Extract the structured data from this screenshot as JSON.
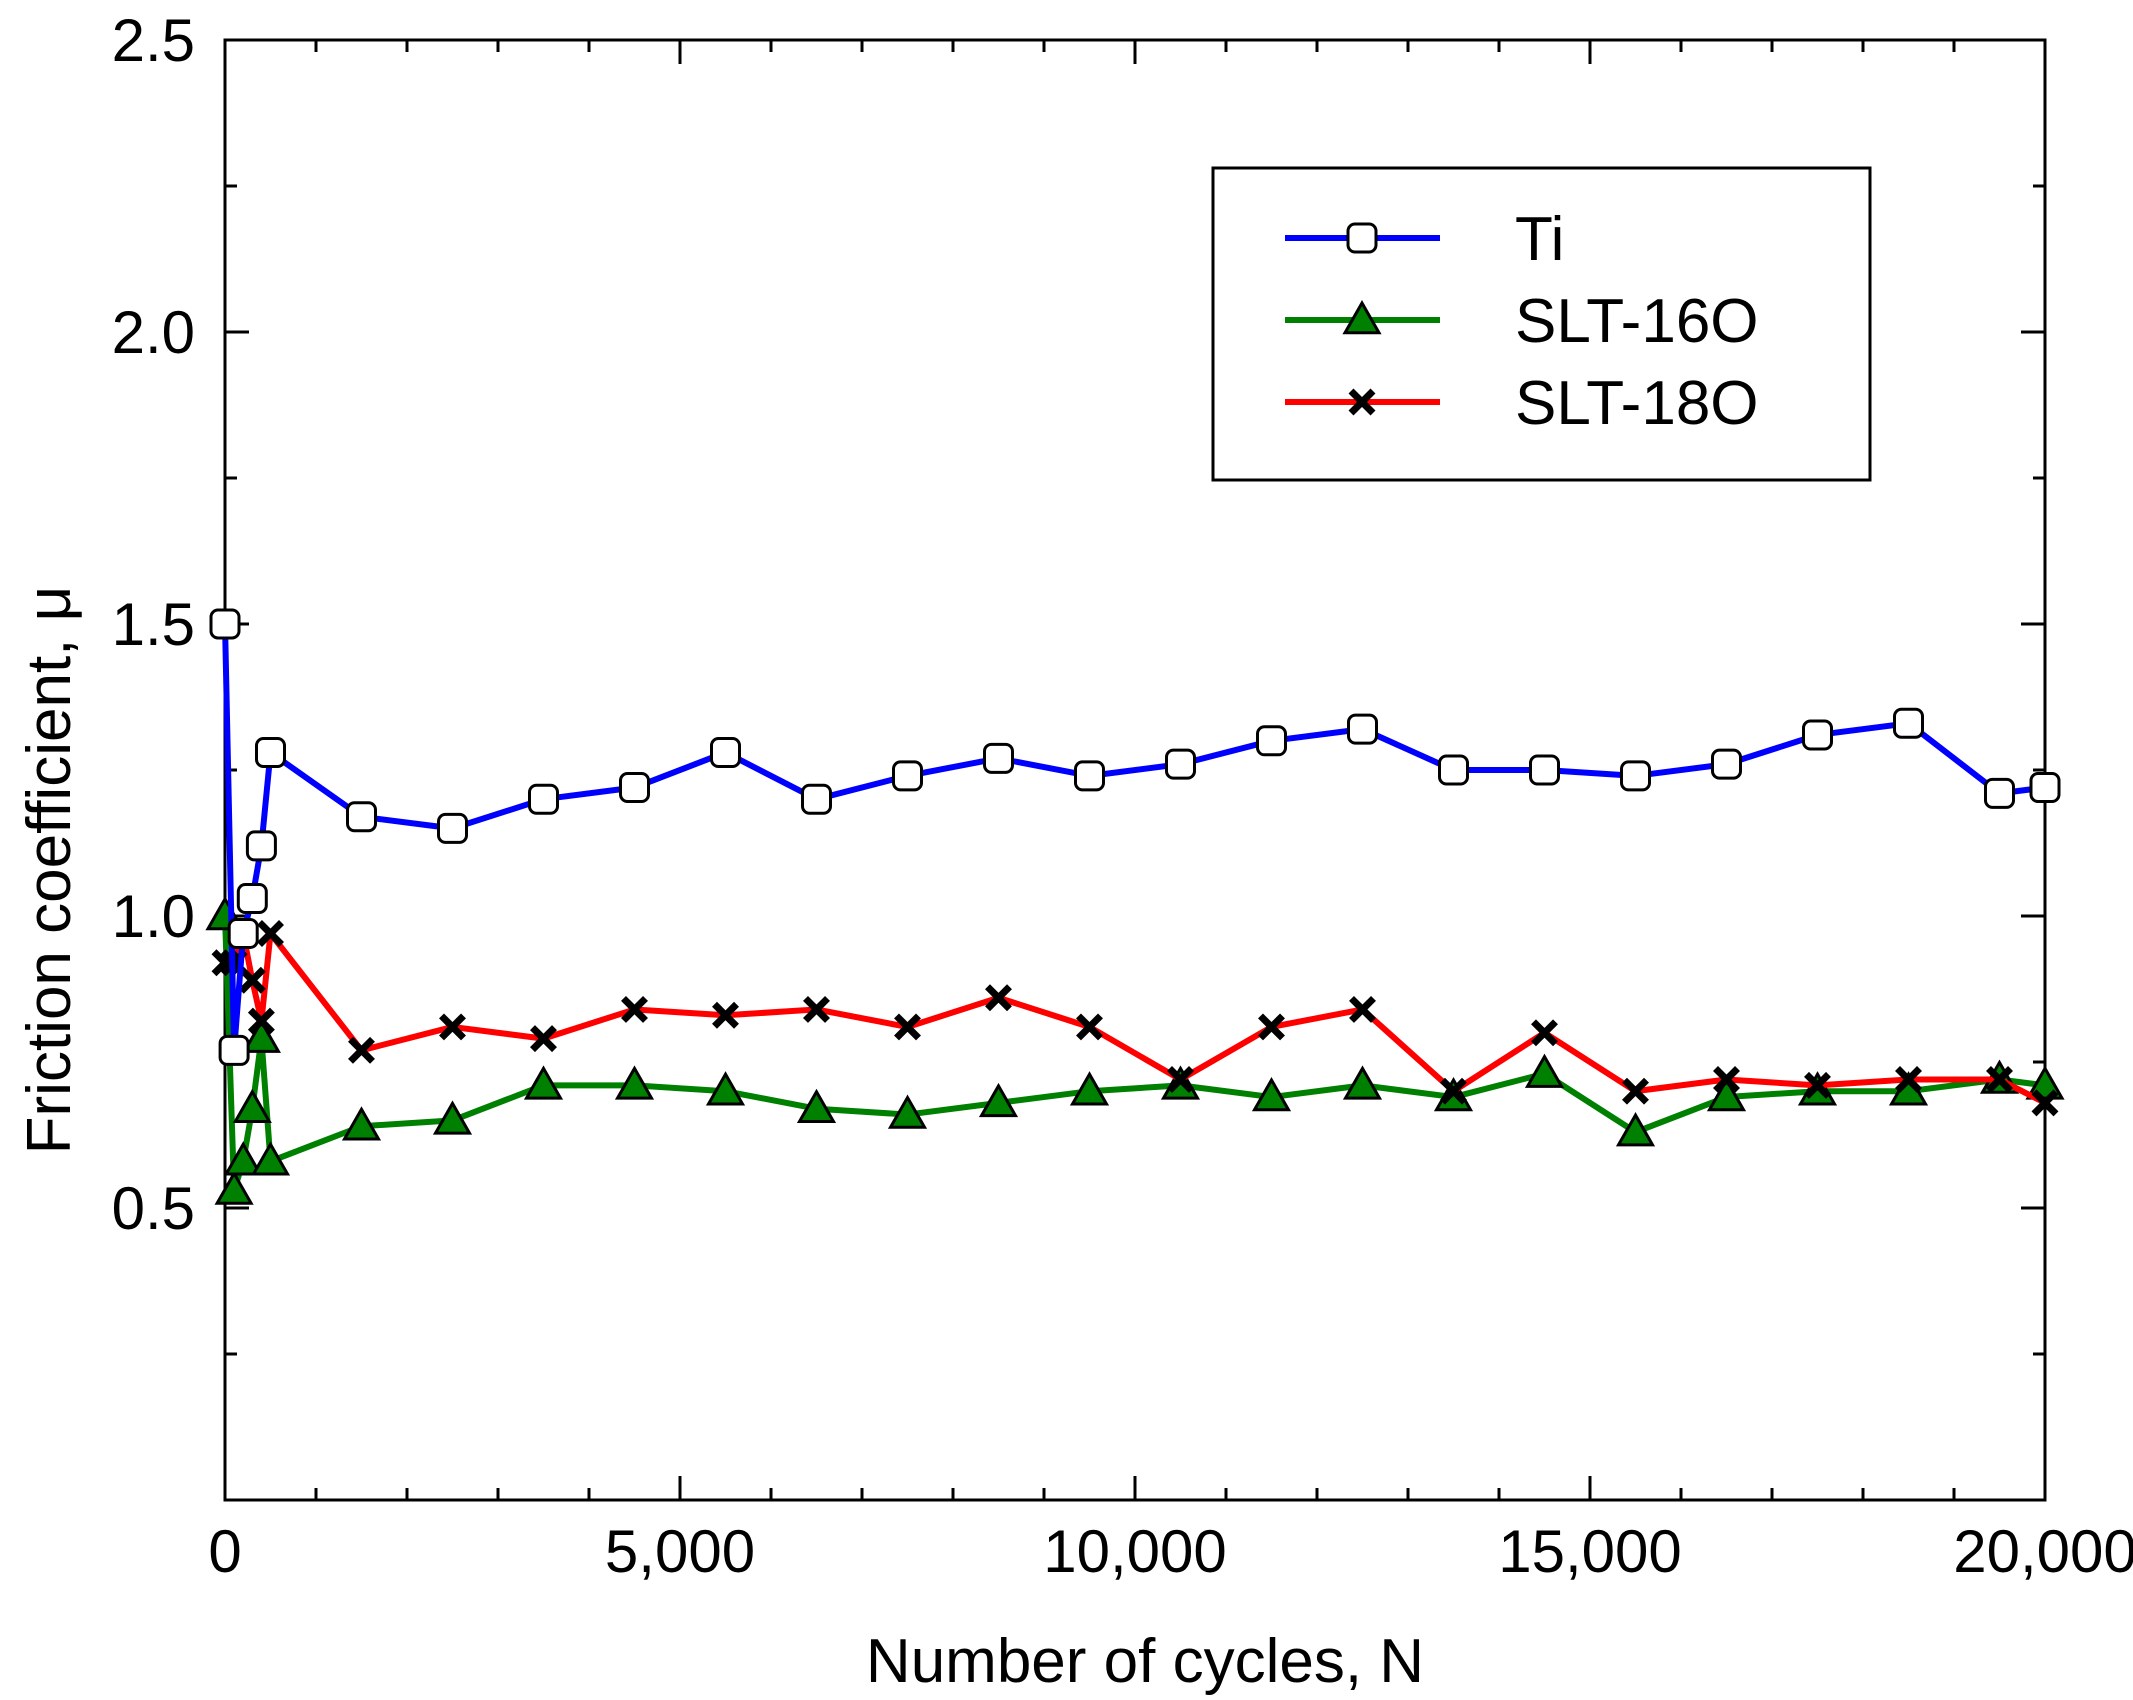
{
  "chart_data": {
    "type": "line",
    "xlabel": "Number of cycles, N",
    "ylabel": "Friction coefficient, μ",
    "xlim": [
      0,
      20000
    ],
    "ylim": [
      0.0,
      2.5
    ],
    "x_ticks": [
      0,
      5000,
      10000,
      15000,
      20000
    ],
    "x_tick_labels": [
      "0",
      "5,000",
      "10,000",
      "15,000",
      "20,000"
    ],
    "x_minor_step": 1000,
    "y_ticks": [
      0.5,
      1.0,
      1.5,
      2.0,
      2.5
    ],
    "y_tick_labels": [
      "0.5",
      "1.0",
      "1.5",
      "2.0",
      "2.5"
    ],
    "y_minor_step": 0.25,
    "grid": false,
    "legend_position": "top-right",
    "series": [
      {
        "name": "Ti",
        "color": "#0000ff",
        "marker": "square-open",
        "x": [
          0,
          100,
          200,
          300,
          400,
          500,
          1500,
          2500,
          3500,
          4500,
          5500,
          6500,
          7500,
          8500,
          9500,
          10500,
          11500,
          12500,
          13500,
          14500,
          15500,
          16500,
          17500,
          18500,
          19500,
          20000
        ],
        "y": [
          1.5,
          0.77,
          0.97,
          1.03,
          1.12,
          1.28,
          1.17,
          1.15,
          1.2,
          1.22,
          1.28,
          1.2,
          1.24,
          1.27,
          1.24,
          1.26,
          1.3,
          1.32,
          1.25,
          1.25,
          1.24,
          1.26,
          1.31,
          1.33,
          1.21,
          1.22
        ]
      },
      {
        "name": "SLT-16O",
        "color": "#008000",
        "marker": "triangle",
        "x": [
          0,
          100,
          200,
          300,
          400,
          500,
          1500,
          2500,
          3500,
          4500,
          5500,
          6500,
          7500,
          8500,
          9500,
          10500,
          11500,
          12500,
          13500,
          14500,
          15500,
          16500,
          17500,
          18500,
          19500,
          20000
        ],
        "y": [
          1.0,
          0.53,
          0.58,
          0.67,
          0.79,
          0.58,
          0.64,
          0.65,
          0.71,
          0.71,
          0.7,
          0.67,
          0.66,
          0.68,
          0.7,
          0.71,
          0.69,
          0.71,
          0.69,
          0.73,
          0.63,
          0.69,
          0.7,
          0.7,
          0.72,
          0.71
        ]
      },
      {
        "name": "SLT-18O",
        "color": "#ff0000",
        "marker": "x",
        "x": [
          0,
          100,
          200,
          300,
          400,
          500,
          1500,
          2500,
          3500,
          4500,
          5500,
          6500,
          7500,
          8500,
          9500,
          10500,
          11500,
          12500,
          13500,
          14500,
          15500,
          16500,
          17500,
          18500,
          19500,
          20000
        ],
        "y": [
          0.92,
          0.92,
          0.97,
          0.89,
          0.82,
          0.97,
          0.77,
          0.81,
          0.79,
          0.84,
          0.83,
          0.84,
          0.81,
          0.86,
          0.81,
          0.72,
          0.81,
          0.84,
          0.7,
          0.8,
          0.7,
          0.72,
          0.71,
          0.72,
          0.72,
          0.68
        ]
      }
    ]
  }
}
